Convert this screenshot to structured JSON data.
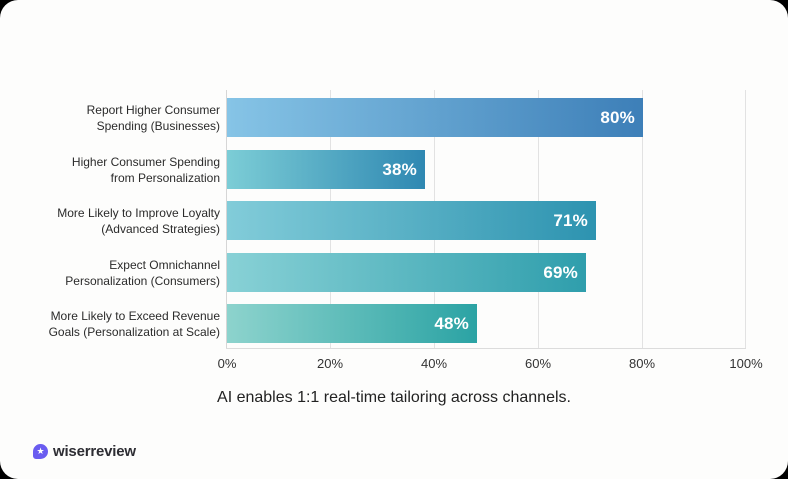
{
  "chart_data": {
    "type": "bar",
    "orientation": "horizontal",
    "title": "",
    "caption": "AI enables 1:1 real-time tailoring across channels.",
    "xlabel": "",
    "ylabel": "",
    "xlim": [
      0,
      100
    ],
    "grid": true,
    "legend": null,
    "categories": [
      "Report Higher Consumer Spending (Businesses)",
      "Higher Consumer Spending from Personalization",
      "More Likely to Improve Loyalty (Advanced Strategies)",
      "Expect Omnichannel Personalization (Consumers)",
      "More Likely to Exceed Revenue Goals (Personalization at Scale)"
    ],
    "values": [
      80,
      38,
      71,
      69,
      48
    ],
    "value_labels": [
      "80%",
      "38%",
      "71%",
      "69%",
      "48%"
    ],
    "x_ticks": [
      "0%",
      "20%",
      "40%",
      "60%",
      "80%",
      "100%"
    ]
  },
  "rows": [
    {
      "line1": "Report Higher Consumer",
      "line2": "Spending (Businesses)",
      "value": 80,
      "label": "80%",
      "from": "#86c4e6",
      "to": "#3d7fb8"
    },
    {
      "line1": "Higher Consumer Spending",
      "line2": "from Personalization",
      "value": 38,
      "label": "38%",
      "from": "#7ccdd6",
      "to": "#2f88b2"
    },
    {
      "line1": "More Likely to Improve Loyalty",
      "line2": "(Advanced Strategies)",
      "value": 71,
      "label": "71%",
      "from": "#82ccd9",
      "to": "#2d93b0"
    },
    {
      "line1": "Expect Omnichannel",
      "line2": "Personalization (Consumers)",
      "value": 69,
      "label": "69%",
      "from": "#88d1d6",
      "to": "#2f9eac"
    },
    {
      "line1": "More Likely to Exceed Revenue",
      "line2": "Goals (Personalization at Scale)",
      "value": 48,
      "label": "48%",
      "from": "#8dd3cd",
      "to": "#2ba3a4"
    }
  ],
  "ticks": [
    "0%",
    "20%",
    "40%",
    "60%",
    "80%",
    "100%"
  ],
  "caption": "AI enables 1:1 real-time tailoring across channels.",
  "brand": {
    "name": "wiserreview",
    "icon": "star-badge-icon",
    "color": "#6a5cf0"
  }
}
